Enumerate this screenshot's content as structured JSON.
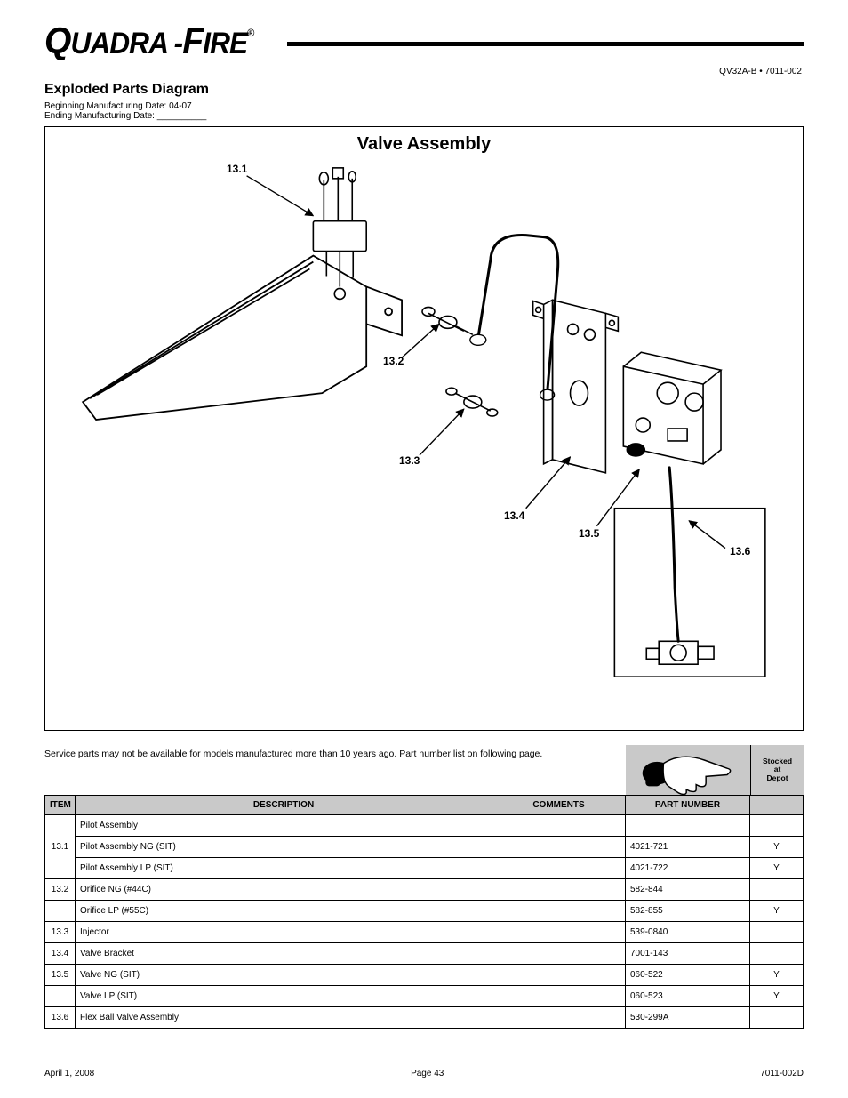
{
  "brand_part1": "UADRA",
  "brand_hyphen": "-",
  "brand_part2": "IRE",
  "brand_reg": "®",
  "model_line": "QV32A-B • 7011-002",
  "exploded_title": "Exploded Parts Diagram",
  "begin_date": "Beginning Manufacturing Date: 04-07",
  "end_date": "Ending Manufacturing Date: __________",
  "valve_assembly_heading": "Valve Assembly",
  "callouts": {
    "c1": "13.1",
    "c2": "13.2",
    "c3": "13.3",
    "c4": "13.4",
    "c5": "13.5",
    "c6": "13.6"
  },
  "notice": "Service parts may not be available for models manufactured more than 10 years ago.  Part number list on following page.",
  "stock_head_l1": "Stocked",
  "stock_head_l2": "at",
  "stock_head_l3": "Depot",
  "table": {
    "cols": {
      "item": "ITEM",
      "desc": "DESCRIPTION",
      "comments": "COMMENTS",
      "part": "PART NUMBER"
    },
    "rows": [
      {
        "item": "13.1",
        "desc": "Pilot Assembly",
        "comments": "",
        "part": "",
        "stock": ""
      },
      {
        "item": "",
        "desc": "Pilot Assembly NG (SIT)",
        "comments": "",
        "part": "4021-721",
        "stock": "Y",
        "sub": true
      },
      {
        "item": "",
        "desc": "Pilot Assembly LP (SIT)",
        "comments": "",
        "part": "4021-722",
        "stock": "Y",
        "sub": true
      },
      {
        "item": "13.2",
        "desc": "Orifice NG (#44C)",
        "comments": "",
        "part": "582-844",
        "stock": ""
      },
      {
        "item": "",
        "desc": "Orifice LP (#55C)",
        "comments": "",
        "part": "582-855",
        "stock": "Y",
        "sub": false
      },
      {
        "item": "13.3",
        "desc": "Injector",
        "comments": "",
        "part": "539-0840",
        "stock": ""
      },
      {
        "item": "13.4",
        "desc": "Valve Bracket",
        "comments": "",
        "part": "7001-143",
        "stock": ""
      },
      {
        "item": "13.5",
        "desc": "Valve NG (SIT)",
        "comments": "",
        "part": "060-522",
        "stock": "Y"
      },
      {
        "item": "",
        "desc": "Valve LP (SIT)",
        "comments": "",
        "part": "060-523",
        "stock": "Y",
        "sub": false
      },
      {
        "item": "13.6",
        "desc": "Flex Ball Valve Assembly",
        "comments": "",
        "part": "530-299A",
        "stock": ""
      }
    ]
  },
  "footer_left": "April 1, 2008",
  "footer_center": "Page 43",
  "footer_right": "7011-002D"
}
